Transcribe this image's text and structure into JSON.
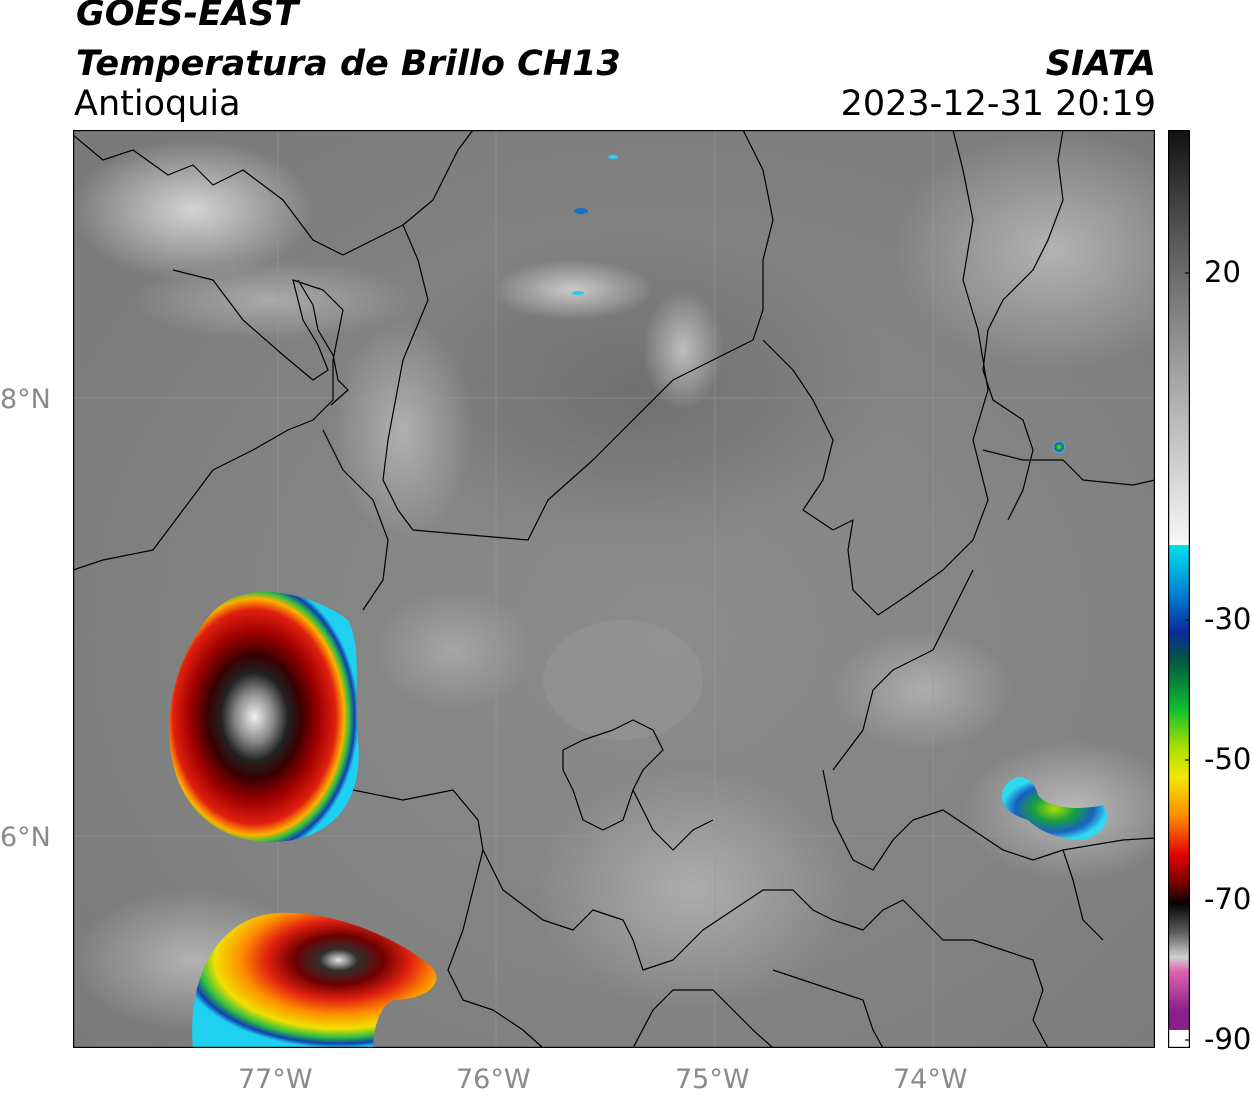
{
  "header": {
    "satellite": "GOES-EAST",
    "product": "Temperatura de Brillo CH13",
    "region": "Antioquia",
    "agency": "SIATA",
    "timestamp": "2023-12-31 20:19"
  },
  "axes": {
    "lat_ticks": [
      "8°N",
      "6°N"
    ],
    "lon_ticks": [
      "77°W",
      "76°W",
      "75°W",
      "74°W"
    ]
  },
  "colorbar": {
    "ticks": [
      "20",
      "-30",
      "-50",
      "-70",
      "-90"
    ],
    "colors": {
      "warm_top": "#1a1a1a",
      "warm_bottom": "#f4f4f4",
      "cyan": "#00c8e6",
      "blue": "#0a2a9a",
      "green": "#17b43a",
      "yellow": "#f2e600",
      "orange": "#ff8a00",
      "red": "#d41010",
      "dark_red": "#3a0000",
      "black": "#050505",
      "grey": "#c8c8c8",
      "magenta": "#c040c0"
    }
  }
}
